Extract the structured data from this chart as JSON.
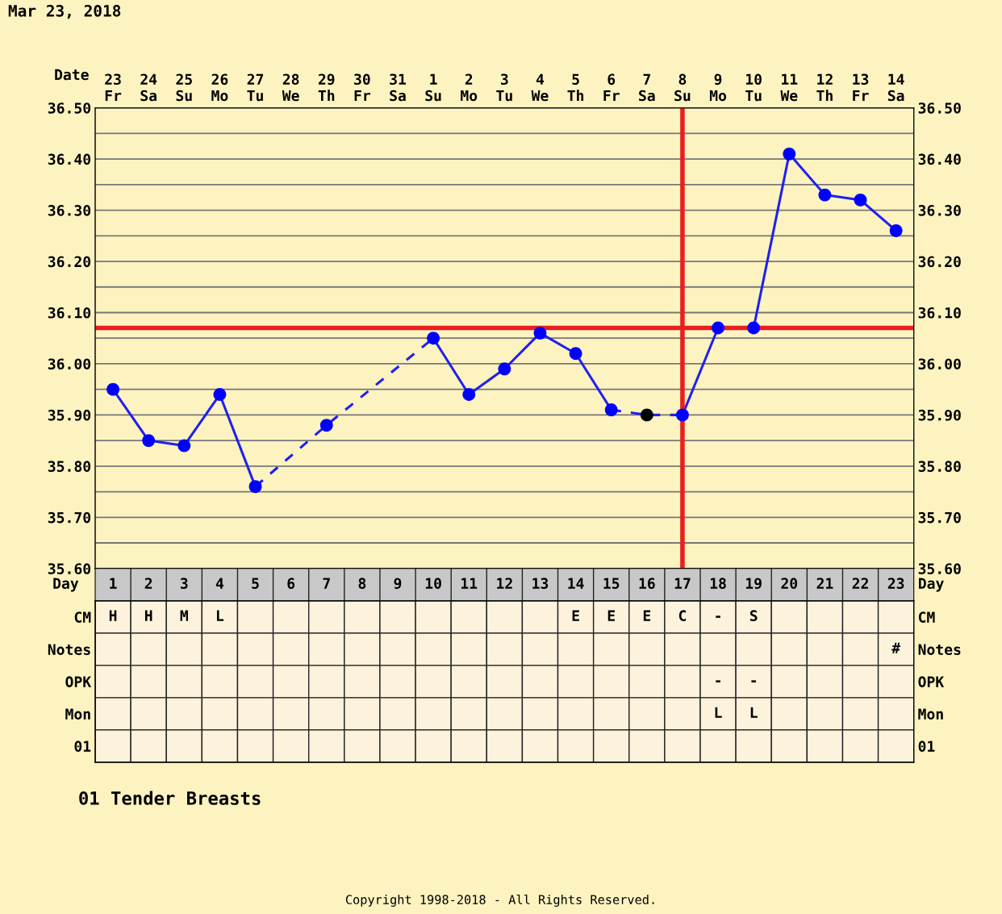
{
  "chart_data": [
    {
      "type": "line",
      "title": "Mar 23, 2018",
      "xlabel": "Date",
      "categories": [
        "23\nFr",
        "24\nSa",
        "25\nSu",
        "26\nMo",
        "27\nTu",
        "28\nWe",
        "29\nTh",
        "30\nFr",
        "31\nSa",
        "1\nSu",
        "2\nMo",
        "3\nTu",
        "4\nWe",
        "5\nTh",
        "6\nFr",
        "7\nSa",
        "8\nSu",
        "9\nMo",
        "10\nTu",
        "11\nWe",
        "12\nTh",
        "13\nFr",
        "14\nSa"
      ],
      "series": [
        {
          "type": "line",
          "line_style": "solid",
          "color": "#2020f0",
          "values": [
            35.95,
            35.85,
            35.84,
            35.94,
            35.76,
            null,
            null,
            null,
            null,
            null,
            null,
            null,
            null,
            null,
            null,
            null,
            null,
            null,
            null,
            null,
            null,
            null,
            null
          ]
        },
        {
          "type": "line",
          "line_style": "dashed",
          "color": "#2020f0",
          "values": [
            null,
            null,
            null,
            null,
            35.76,
            null,
            35.88,
            null,
            null,
            36.05,
            null,
            null,
            null,
            null,
            null,
            null,
            null,
            null,
            null,
            null,
            null,
            null,
            null
          ]
        },
        {
          "type": "line",
          "line_style": "solid",
          "color": "#2020f0",
          "values": [
            null,
            null,
            null,
            null,
            null,
            null,
            null,
            null,
            null,
            36.05,
            35.94,
            35.99,
            36.06,
            36.02,
            35.91,
            null,
            null,
            null,
            null,
            null,
            null,
            null,
            null
          ]
        },
        {
          "type": "line",
          "line_style": "dashed",
          "color": "#2020f0",
          "values": [
            null,
            null,
            null,
            null,
            null,
            null,
            null,
            null,
            null,
            null,
            null,
            null,
            null,
            null,
            35.91,
            35.9,
            35.9,
            null,
            null,
            null,
            null,
            null,
            null
          ]
        },
        {
          "type": "line",
          "line_style": "solid",
          "color": "#2020f0",
          "values": [
            null,
            null,
            null,
            null,
            null,
            null,
            null,
            null,
            null,
            null,
            null,
            null,
            null,
            null,
            null,
            null,
            35.9,
            36.07,
            36.07,
            36.41,
            36.33,
            36.32,
            36.26
          ]
        },
        {
          "type": "scatter",
          "marker": "circle",
          "color": "#0000ff",
          "values": [
            35.95,
            35.85,
            35.84,
            35.94,
            35.76,
            null,
            35.88,
            null,
            null,
            36.05,
            35.94,
            35.99,
            36.06,
            36.02,
            35.91,
            null,
            35.9,
            36.07,
            36.07,
            36.41,
            36.33,
            36.32,
            36.26
          ]
        },
        {
          "type": "scatter",
          "marker": "circle",
          "color": "#000000",
          "values": [
            null,
            null,
            null,
            null,
            null,
            null,
            null,
            null,
            null,
            null,
            null,
            null,
            null,
            null,
            null,
            35.9,
            null,
            null,
            null,
            null,
            null,
            null,
            null
          ]
        }
      ],
      "ylim": [
        35.6,
        36.5
      ],
      "yticks": [
        {
          "value": 35.6,
          "label": "35.60"
        },
        {
          "value": 35.65,
          "label": null
        },
        {
          "value": 35.7,
          "label": "35.70"
        },
        {
          "value": 35.75,
          "label": null
        },
        {
          "value": 35.8,
          "label": "35.80"
        },
        {
          "value": 35.85,
          "label": null
        },
        {
          "value": 35.9,
          "label": "35.90"
        },
        {
          "value": 35.95,
          "label": null
        },
        {
          "value": 36.0,
          "label": "36.00"
        },
        {
          "value": 36.05,
          "label": null
        },
        {
          "value": 36.1,
          "label": "36.10"
        },
        {
          "value": 36.15,
          "label": null
        },
        {
          "value": 36.2,
          "label": "36.20"
        },
        {
          "value": 36.25,
          "label": null
        },
        {
          "value": 36.3,
          "label": "36.30"
        },
        {
          "value": 36.35,
          "label": null
        },
        {
          "value": 36.4,
          "label": "36.40"
        },
        {
          "value": 36.45,
          "label": null
        },
        {
          "value": 36.5,
          "label": "36.50"
        }
      ],
      "y2lim": [
        35.6,
        36.5
      ],
      "y2ticks": [
        {
          "value": 35.6,
          "label": "35.60"
        },
        {
          "value": 35.7,
          "label": "35.70"
        },
        {
          "value": 35.8,
          "label": "35.80"
        },
        {
          "value": 35.9,
          "label": "35.90"
        },
        {
          "value": 36.0,
          "label": "36.00"
        },
        {
          "value": 36.1,
          "label": "36.10"
        },
        {
          "value": 36.2,
          "label": "36.20"
        },
        {
          "value": 36.3,
          "label": "36.30"
        },
        {
          "value": 36.4,
          "label": "36.40"
        },
        {
          "value": 36.5,
          "label": "36.50"
        }
      ],
      "ref_lines": [
        {
          "axis": "y",
          "value": 36.07,
          "color": "#e82020"
        },
        {
          "axis": "x",
          "value": "8\nSu",
          "color": "#e82020"
        }
      ],
      "grid": true,
      "legend": false,
      "annotations": [
        "01 Tender Breasts",
        "Copyright 1998-2018 - All Rights Reserved."
      ]
    },
    {
      "type": "heatmap",
      "xlabel": "Day",
      "categories": [
        "1",
        "2",
        "3",
        "4",
        "5",
        "6",
        "7",
        "8",
        "9",
        "10",
        "11",
        "12",
        "13",
        "14",
        "15",
        "16",
        "17",
        "18",
        "19",
        "20",
        "21",
        "22",
        "23"
      ],
      "y_categories": [
        "CM",
        "Notes",
        "OPK",
        "Mon",
        "01"
      ],
      "y2_categories": [
        "CM",
        "Notes",
        "OPK",
        "Mon",
        "01"
      ],
      "cells": [
        [
          null,
          null,
          null,
          null,
          null,
          null,
          null,
          null,
          null,
          null,
          null,
          null,
          null,
          null,
          null,
          null,
          null,
          null,
          null,
          null,
          null,
          null,
          null
        ],
        [
          null,
          null,
          null,
          null,
          null,
          null,
          null,
          null,
          null,
          null,
          null,
          null,
          null,
          null,
          null,
          null,
          null,
          null,
          null,
          null,
          null,
          null,
          null
        ],
        [
          null,
          null,
          null,
          null,
          null,
          null,
          null,
          null,
          null,
          null,
          null,
          null,
          null,
          null,
          null,
          null,
          null,
          null,
          null,
          null,
          null,
          null,
          null
        ],
        [
          null,
          null,
          null,
          null,
          null,
          null,
          null,
          null,
          null,
          null,
          null,
          null,
          null,
          null,
          null,
          null,
          null,
          null,
          null,
          null,
          null,
          null,
          null
        ],
        [
          null,
          null,
          null,
          null,
          null,
          null,
          null,
          null,
          null,
          null,
          null,
          null,
          null,
          null,
          null,
          null,
          null,
          null,
          null,
          null,
          null,
          null,
          null
        ]
      ],
      "cell_labels": [
        [
          "H",
          "H",
          "M",
          "L",
          null,
          null,
          null,
          null,
          null,
          null,
          null,
          null,
          null,
          "E",
          "E",
          "E",
          "C",
          "-",
          "S",
          null,
          null,
          null,
          null
        ],
        [
          null,
          null,
          null,
          null,
          null,
          null,
          null,
          null,
          null,
          null,
          null,
          null,
          null,
          null,
          null,
          null,
          null,
          null,
          null,
          null,
          null,
          null,
          "#"
        ],
        [
          null,
          null,
          null,
          null,
          null,
          null,
          null,
          null,
          null,
          null,
          null,
          null,
          null,
          null,
          null,
          null,
          null,
          "-",
          "-",
          null,
          null,
          null,
          null
        ],
        [
          null,
          null,
          null,
          null,
          null,
          null,
          null,
          null,
          null,
          null,
          null,
          null,
          null,
          null,
          null,
          null,
          null,
          "L",
          "L",
          null,
          null,
          null,
          null
        ],
        [
          null,
          null,
          null,
          null,
          null,
          null,
          null,
          null,
          null,
          null,
          null,
          null,
          null,
          null,
          null,
          null,
          null,
          null,
          null,
          null,
          null,
          null,
          null
        ]
      ]
    }
  ]
}
